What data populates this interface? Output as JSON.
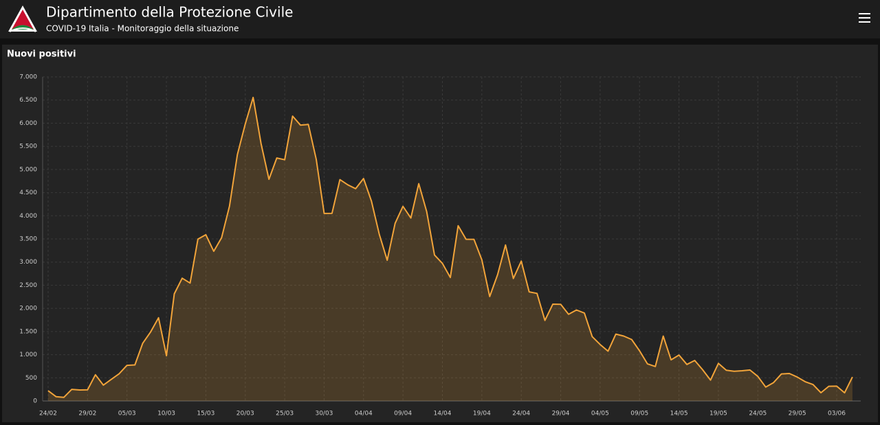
{
  "header": {
    "title": "Dipartimento della Protezione Civile",
    "subtitle": "COVID-19 Italia - Monitoraggio della situazione"
  },
  "chart_data": {
    "type": "area",
    "title": "Nuovi positivi",
    "categories": [
      "24/02",
      null,
      null,
      null,
      null,
      "29/02",
      null,
      null,
      null,
      null,
      "05/03",
      null,
      null,
      null,
      null,
      "10/03",
      null,
      null,
      null,
      null,
      "15/03",
      null,
      null,
      null,
      null,
      "20/03",
      null,
      null,
      null,
      null,
      "25/03",
      null,
      null,
      null,
      null,
      "30/03",
      null,
      null,
      null,
      null,
      "04/04",
      null,
      null,
      null,
      null,
      "09/04",
      null,
      null,
      null,
      null,
      "14/04",
      null,
      null,
      null,
      null,
      "19/04",
      null,
      null,
      null,
      null,
      "24/04",
      null,
      null,
      null,
      null,
      "29/04",
      null,
      null,
      null,
      null,
      "04/05",
      null,
      null,
      null,
      null,
      "09/05",
      null,
      null,
      null,
      null,
      "14/05",
      null,
      null,
      null,
      null,
      "19/05",
      null,
      null,
      null,
      null,
      "24/05",
      null,
      null,
      null,
      null,
      "29/05",
      null,
      null,
      null,
      null,
      "03/06",
      null,
      null
    ],
    "series": [
      {
        "name": "Nuovi positivi",
        "color": "#f2a43a",
        "values": [
          221,
          93,
          78,
          250,
          238,
          240,
          566,
          342,
          466,
          587,
          769,
          778,
          1247,
          1492,
          1797,
          977,
          2313,
          2651,
          2547,
          3497,
          3590,
          3233,
          3526,
          4207,
          5322,
          5986,
          6557,
          5560,
          4789,
          5249,
          5210,
          6153,
          5959,
          5974,
          5217,
          4050,
          4053,
          4782,
          4668,
          4585,
          4805,
          4316,
          3599,
          3039,
          3836,
          4204,
          3951,
          4694,
          4092,
          3153,
          2972,
          2667,
          3786,
          3493,
          3491,
          3047,
          2256,
          2729,
          3370,
          2646,
          3021,
          2357,
          2324,
          1739,
          2091,
          2086,
          1872,
          1965,
          1900,
          1389,
          1221,
          1075,
          1444,
          1401,
          1327,
          1083,
          802,
          744,
          1402,
          888,
          992,
          789,
          875,
          675,
          451,
          813,
          665,
          642,
          652,
          669,
          531,
          300,
          397,
          584,
          593,
          516,
          416,
          355,
          178,
          318,
          321,
          177,
          518
        ]
      }
    ],
    "ylim": [
      0,
      7000
    ],
    "yticks": [
      0,
      500,
      {
        "value": 1000,
        "label": "1.000"
      },
      {
        "value": 1500,
        "label": "1.500"
      },
      {
        "value": 2000,
        "label": "2.000"
      },
      {
        "value": 2500,
        "label": "2.500"
      },
      {
        "value": 3000,
        "label": "3.000"
      },
      {
        "value": 3500,
        "label": "3.500"
      },
      {
        "value": 4000,
        "label": "4.000"
      },
      {
        "value": 4500,
        "label": "4.500"
      },
      {
        "value": 5000,
        "label": "5.000"
      },
      {
        "value": 5500,
        "label": "5.500"
      },
      {
        "value": 6000,
        "label": "6.000"
      },
      {
        "value": 6500,
        "label": "6.500"
      },
      {
        "value": 7000,
        "label": "7.000"
      }
    ],
    "grid": true
  }
}
